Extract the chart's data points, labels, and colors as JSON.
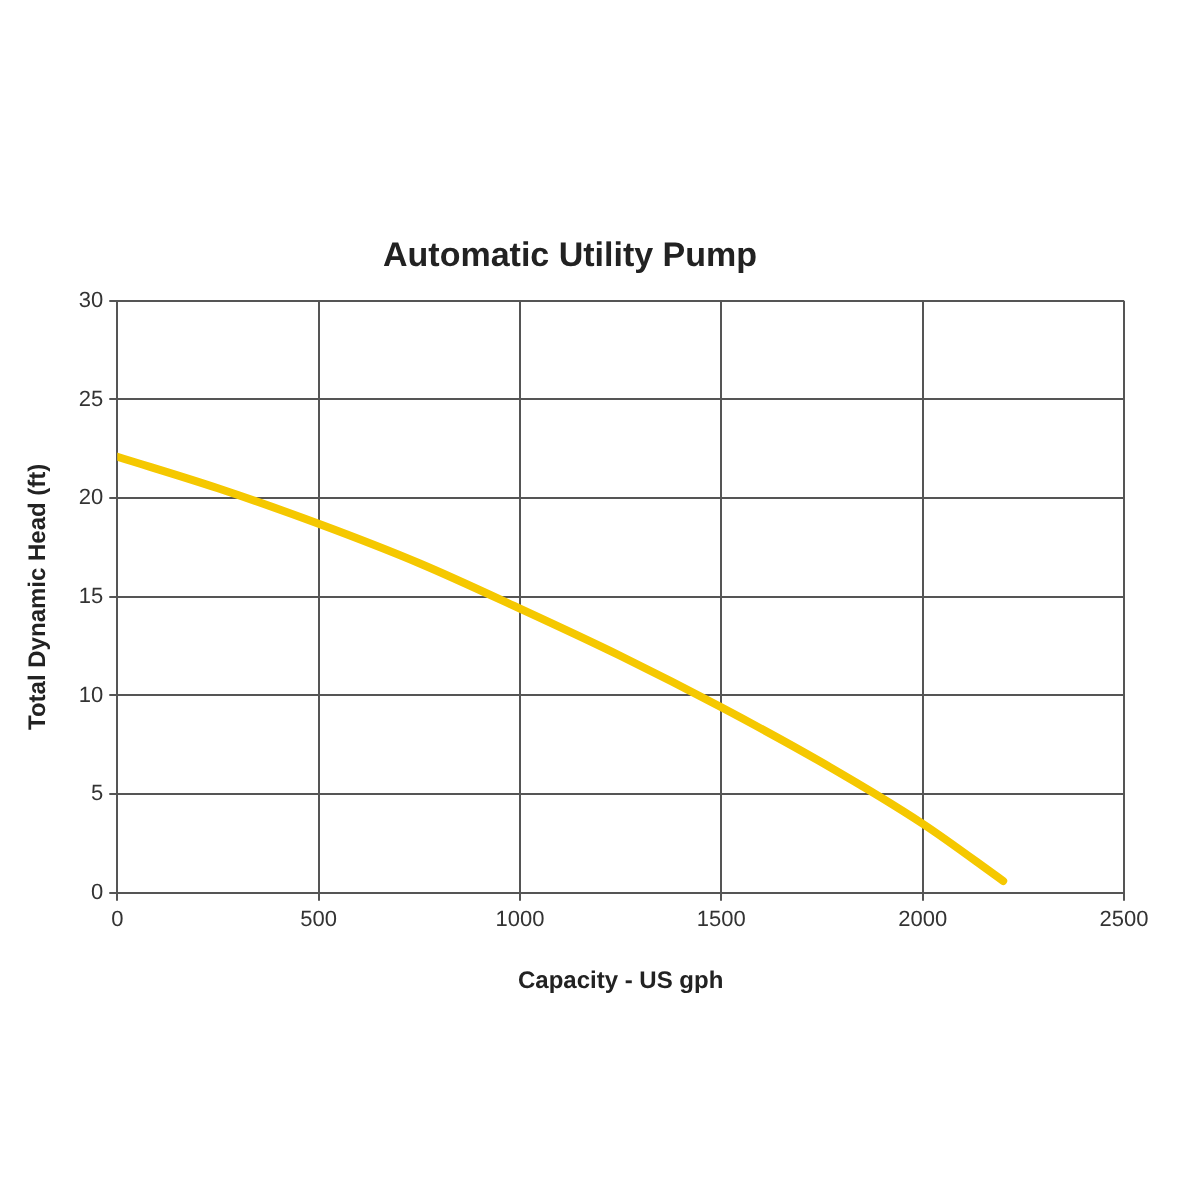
{
  "chart_data": {
    "type": "line",
    "title": "Automatic Utility Pump",
    "xlabel": "Capacity - US gph",
    "ylabel": "Total Dynamic Head (ft)",
    "x": [
      0,
      250,
      500,
      750,
      1000,
      1250,
      1500,
      1750,
      2000,
      2200
    ],
    "series": [
      {
        "color": "#f5c800",
        "values": [
          22.1,
          20.5,
          18.7,
          16.7,
          14.4,
          12.0,
          9.4,
          6.6,
          3.5,
          0.6
        ]
      }
    ],
    "xlim": [
      0,
      2500
    ],
    "xticks": [
      0,
      500,
      1000,
      1500,
      2000,
      2500
    ],
    "ylim": [
      0,
      30
    ],
    "yticks": [
      0,
      5,
      10,
      15,
      20,
      25,
      30
    ],
    "grid": true,
    "legend": false,
    "marker": "none",
    "line_style": "solid"
  }
}
